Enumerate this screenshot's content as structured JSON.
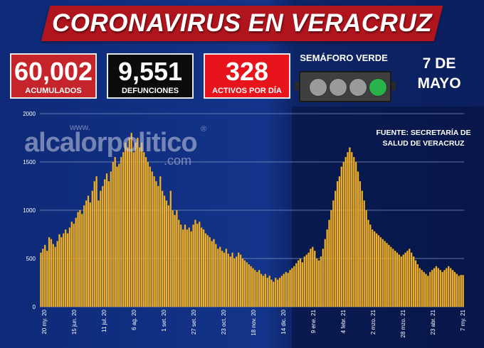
{
  "header": {
    "title": "CORONAVIRUS EN VERACRUZ"
  },
  "stats": {
    "acumulados": {
      "value": "60,002",
      "label": "ACUMULADOS"
    },
    "defunciones": {
      "value": "9,551",
      "label": "DEFUNCIONES"
    },
    "activos": {
      "value": "328",
      "label": "ACTIVOS POR DÍA"
    }
  },
  "semaforo": {
    "label": "SEMÁFORO VERDE",
    "active_color": "#29b34a",
    "active_light": 4
  },
  "date": {
    "line1": "7 DE",
    "line2": "MAYO"
  },
  "source": {
    "line1": "FUENTE: SECRETARÍA DE",
    "line2": "SALUD DE VERACRUZ"
  },
  "watermark": {
    "www": "www.",
    "name": "alcalorpolitico",
    "reg": "®",
    "com": ".com"
  },
  "colors": {
    "bar": "#f2b52c",
    "bar_edge": "#c98a10",
    "grid": "#9fb0d8",
    "background": "#13348a"
  },
  "chart_data": {
    "type": "bar",
    "title": "",
    "xlabel": "",
    "ylabel": "",
    "ylim": [
      0,
      2000
    ],
    "yticks": [
      0,
      500,
      1000,
      1500,
      2000
    ],
    "grid": true,
    "xtick_labels": [
      "20 my. 20",
      "15 jun. 20",
      "11 jul. 20",
      "6 ag. 20",
      "1 set. 20",
      "27 set. 20",
      "23 oct. 20",
      "18 nov. 20",
      "14 dic. 20",
      "9 ene. 21",
      "4 febr. 21",
      "2 mzo. 21",
      "28 mzo. 21",
      "23 abr. 21",
      "7 my. 21"
    ],
    "series": [
      {
        "values": [
          560,
          600,
          640,
          580,
          720,
          700,
          650,
          620,
          680,
          750,
          720,
          760,
          800,
          760,
          820,
          880,
          860,
          920,
          980,
          1000,
          960,
          1050,
          1100,
          1150,
          1080,
          1200,
          1300,
          1350,
          1100,
          1200,
          1250,
          1320,
          1380,
          1300,
          1400,
          1500,
          1550,
          1450,
          1480,
          1550,
          1600,
          1700,
          1650,
          1750,
          1800,
          1600,
          1700,
          1750,
          1650,
          1700,
          1600,
          1550,
          1500,
          1450,
          1400,
          1350,
          1300,
          1250,
          1350,
          1200,
          1150,
          1100,
          1050,
          1200,
          1000,
          950,
          1000,
          900,
          850,
          800,
          850,
          800,
          820,
          780,
          850,
          900,
          860,
          880,
          820,
          800,
          760,
          740,
          720,
          680,
          700,
          650,
          600,
          620,
          580,
          560,
          600,
          550,
          520,
          560,
          500,
          520,
          560,
          540,
          500,
          480,
          460,
          440,
          420,
          400,
          380,
          360,
          380,
          340,
          320,
          340,
          300,
          320,
          280,
          260,
          300,
          280,
          300,
          320,
          340,
          360,
          350,
          380,
          400,
          420,
          450,
          480,
          500,
          460,
          520,
          540,
          560,
          600,
          620,
          580,
          500,
          480,
          520,
          600,
          700,
          800,
          900,
          1000,
          1100,
          1200,
          1300,
          1350,
          1450,
          1500,
          1550,
          1600,
          1650,
          1600,
          1550,
          1500,
          1400,
          1300,
          1200,
          1100,
          1000,
          900,
          850,
          800,
          780,
          760,
          740,
          720,
          700,
          680,
          660,
          640,
          620,
          600,
          580,
          560,
          540,
          520,
          540,
          560,
          580,
          600,
          560,
          520,
          480,
          440,
          400,
          380,
          360,
          340,
          320,
          360,
          380,
          400,
          420,
          400,
          380,
          360,
          380,
          400,
          420,
          400,
          380,
          360,
          340,
          320,
          330,
          328
        ]
      }
    ]
  }
}
